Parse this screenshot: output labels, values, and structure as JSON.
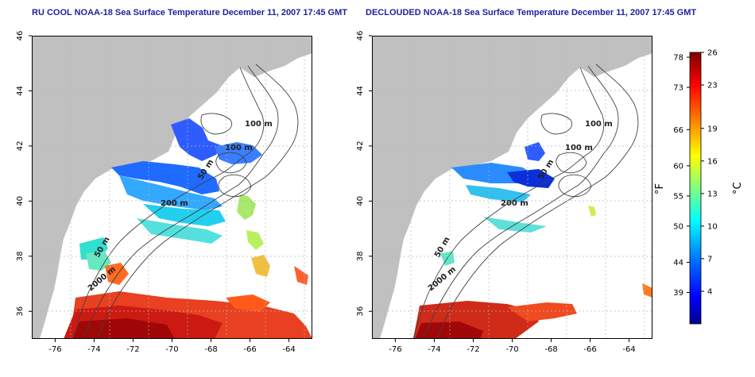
{
  "titles": {
    "left": "RU COOL NOAA-18 Sea Surface Temperature December 11, 2007 17:45 GMT",
    "right": "DECLOUDED NOAA-18 Sea Surface Temperature December 11, 2007 17:45 GMT"
  },
  "map": {
    "lon_ticks": [
      "-76",
      "-74",
      "-72",
      "-70",
      "-68",
      "-66",
      "-64"
    ],
    "lat_ticks": [
      "36",
      "38",
      "40",
      "42",
      "44",
      "46"
    ],
    "lon_range": [
      -77.2,
      -62.8
    ],
    "lat_range": [
      35,
      46
    ],
    "contour_labels": {
      "m100a": "100 m",
      "m100b": "100 m",
      "m50a": "50 m",
      "m200": "200 m",
      "m50b": "50 m",
      "m2000": "2000 m"
    },
    "colors": {
      "land": "#c0c0c0",
      "ocean": "#ffffff",
      "grid": "#b5b5b5",
      "contour": "#404040"
    }
  },
  "colorbar": {
    "fahrenheit_label": "°F",
    "celsius_label": "°C",
    "fahrenheit_ticks": [
      "78",
      "73",
      "66",
      "60",
      "55",
      "50",
      "44",
      "39"
    ],
    "celsius_ticks": [
      "26",
      "23",
      "19",
      "16",
      "13",
      "10",
      "7",
      "4"
    ],
    "range_celsius": [
      1,
      26
    ],
    "gradient": [
      "#00008f",
      "#0000ff",
      "#007fff",
      "#00ffff",
      "#7fff7f",
      "#ffff00",
      "#ff7f00",
      "#ff0000",
      "#7f0000"
    ]
  }
}
